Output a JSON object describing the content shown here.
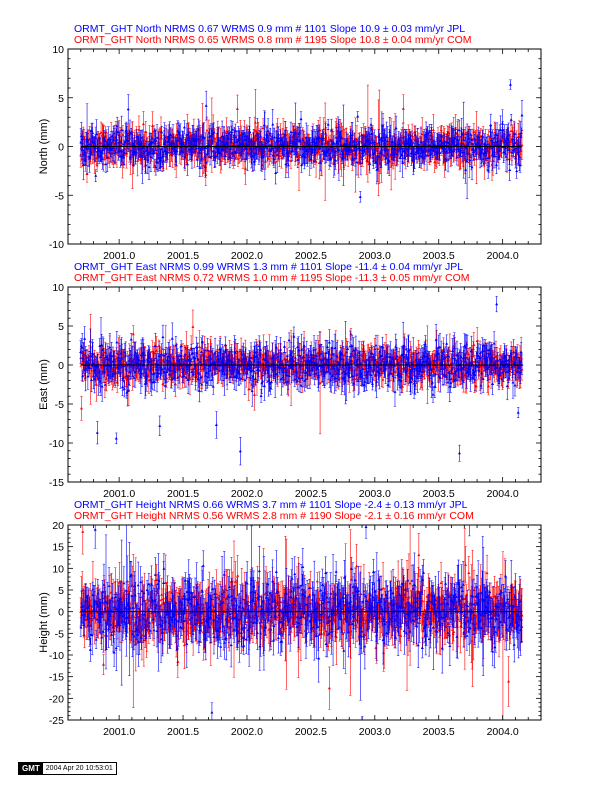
{
  "stamp": {
    "logo": "GMT",
    "date": "2004 Apr 20 10:53:01"
  },
  "colors": {
    "jpl": "#0000ff",
    "com": "#ff0000",
    "frame": "#000000",
    "zero": "#000000"
  },
  "chart_data": [
    {
      "type": "scatter",
      "ylabel": "North (mm)",
      "xlim": [
        2000.6,
        2004.3
      ],
      "ylim": [
        -10,
        10
      ],
      "yticks": [
        -10,
        -5,
        0,
        5,
        10
      ],
      "xticks": [
        2001.0,
        2001.5,
        2002.0,
        2002.5,
        2003.0,
        2003.5,
        2004.0
      ],
      "xticklabels": [
        "2001.0",
        "2001.5",
        "2002.0",
        "2002.5",
        "2003.0",
        "2003.5",
        "2004.0"
      ],
      "legend": [
        "ORMT_GHT North NRMS 0.67 WRMS  0.9 mm # 1101 Slope   10.9 ±  0.03 mm/yr JPL",
        "ORMT_GHT North NRMS 0.65 WRMS  0.8 mm # 1195 Slope   10.8 ±  0.04 mm/yr COM"
      ],
      "series": [
        {
          "name": "JPL",
          "color": "#0000ff",
          "n": 1101,
          "x_range": [
            2000.7,
            2004.15
          ],
          "scatter": 0.9,
          "errbar": 1.2
        },
        {
          "name": "COM",
          "color": "#ff0000",
          "n": 1195,
          "x_range": [
            2000.7,
            2004.15
          ],
          "scatter": 0.8,
          "errbar": 1.3
        }
      ]
    },
    {
      "type": "scatter",
      "ylabel": "East (mm)",
      "xlim": [
        2000.6,
        2004.3
      ],
      "ylim": [
        -15,
        10
      ],
      "yticks": [
        -15,
        -10,
        -5,
        0,
        5,
        10
      ],
      "xticks": [
        2001.0,
        2001.5,
        2002.0,
        2002.5,
        2003.0,
        2003.5,
        2004.0
      ],
      "xticklabels": [
        "2001.0",
        "2001.5",
        "2002.0",
        "2002.5",
        "2003.0",
        "2003.5",
        "2004.0"
      ],
      "legend": [
        "ORMT_GHT East NRMS 0.99 WRMS  1.3 mm # 1101 Slope  -11.4 ±  0.04 mm/yr JPL",
        "ORMT_GHT East NRMS 0.72 WRMS  1.0 mm # 1195 Slope  -11.3 ±  0.05 mm/yr COM"
      ],
      "series": [
        {
          "name": "JPL",
          "color": "#0000ff",
          "n": 1101,
          "x_range": [
            2000.7,
            2004.15
          ],
          "scatter": 1.3,
          "errbar": 1.6
        },
        {
          "name": "COM",
          "color": "#ff0000",
          "n": 1195,
          "x_range": [
            2000.7,
            2004.15
          ],
          "scatter": 1.0,
          "errbar": 1.7
        }
      ]
    },
    {
      "type": "scatter",
      "ylabel": "Height (mm)",
      "xlim": [
        2000.6,
        2004.3
      ],
      "ylim": [
        -25,
        20
      ],
      "yticks": [
        -25,
        -20,
        -15,
        -10,
        -5,
        0,
        5,
        10,
        15,
        20
      ],
      "xticks": [
        2001.0,
        2001.5,
        2002.0,
        2002.5,
        2003.0,
        2003.5,
        2004.0
      ],
      "xticklabels": [
        "2001.0",
        "2001.5",
        "2002.0",
        "2002.5",
        "2003.0",
        "2003.5",
        "2004.0"
      ],
      "legend": [
        "ORMT_GHT Height NRMS 0.66 WRMS  3.7 mm # 1101 Slope   -2.4 ±  0.13 mm/yr JPL",
        "ORMT_GHT Height NRMS 0.56 WRMS  2.8 mm # 1190 Slope   -2.1 ±  0.16 mm/yr COM"
      ],
      "series": [
        {
          "name": "JPL",
          "color": "#0000ff",
          "n": 1101,
          "x_range": [
            2000.7,
            2004.15
          ],
          "scatter": 3.7,
          "errbar": 4.5
        },
        {
          "name": "COM",
          "color": "#ff0000",
          "n": 1190,
          "x_range": [
            2000.7,
            2004.15
          ],
          "scatter": 2.8,
          "errbar": 5.0
        }
      ]
    }
  ]
}
